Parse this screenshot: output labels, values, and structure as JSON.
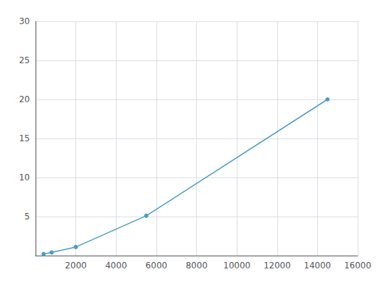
{
  "chart_data": {
    "type": "line",
    "x": [
      400,
      800,
      2000,
      5500,
      14500
    ],
    "values": [
      0.2,
      0.4,
      1.1,
      5.1,
      20.0
    ],
    "color": "#4a9cc7",
    "marker": "circle",
    "xlim": [
      0,
      16000
    ],
    "ylim": [
      0,
      30
    ],
    "xticks": [
      2000,
      4000,
      6000,
      8000,
      10000,
      12000,
      14000,
      16000
    ],
    "yticks": [
      5,
      10,
      15,
      20,
      25,
      30
    ],
    "grid": true
  }
}
